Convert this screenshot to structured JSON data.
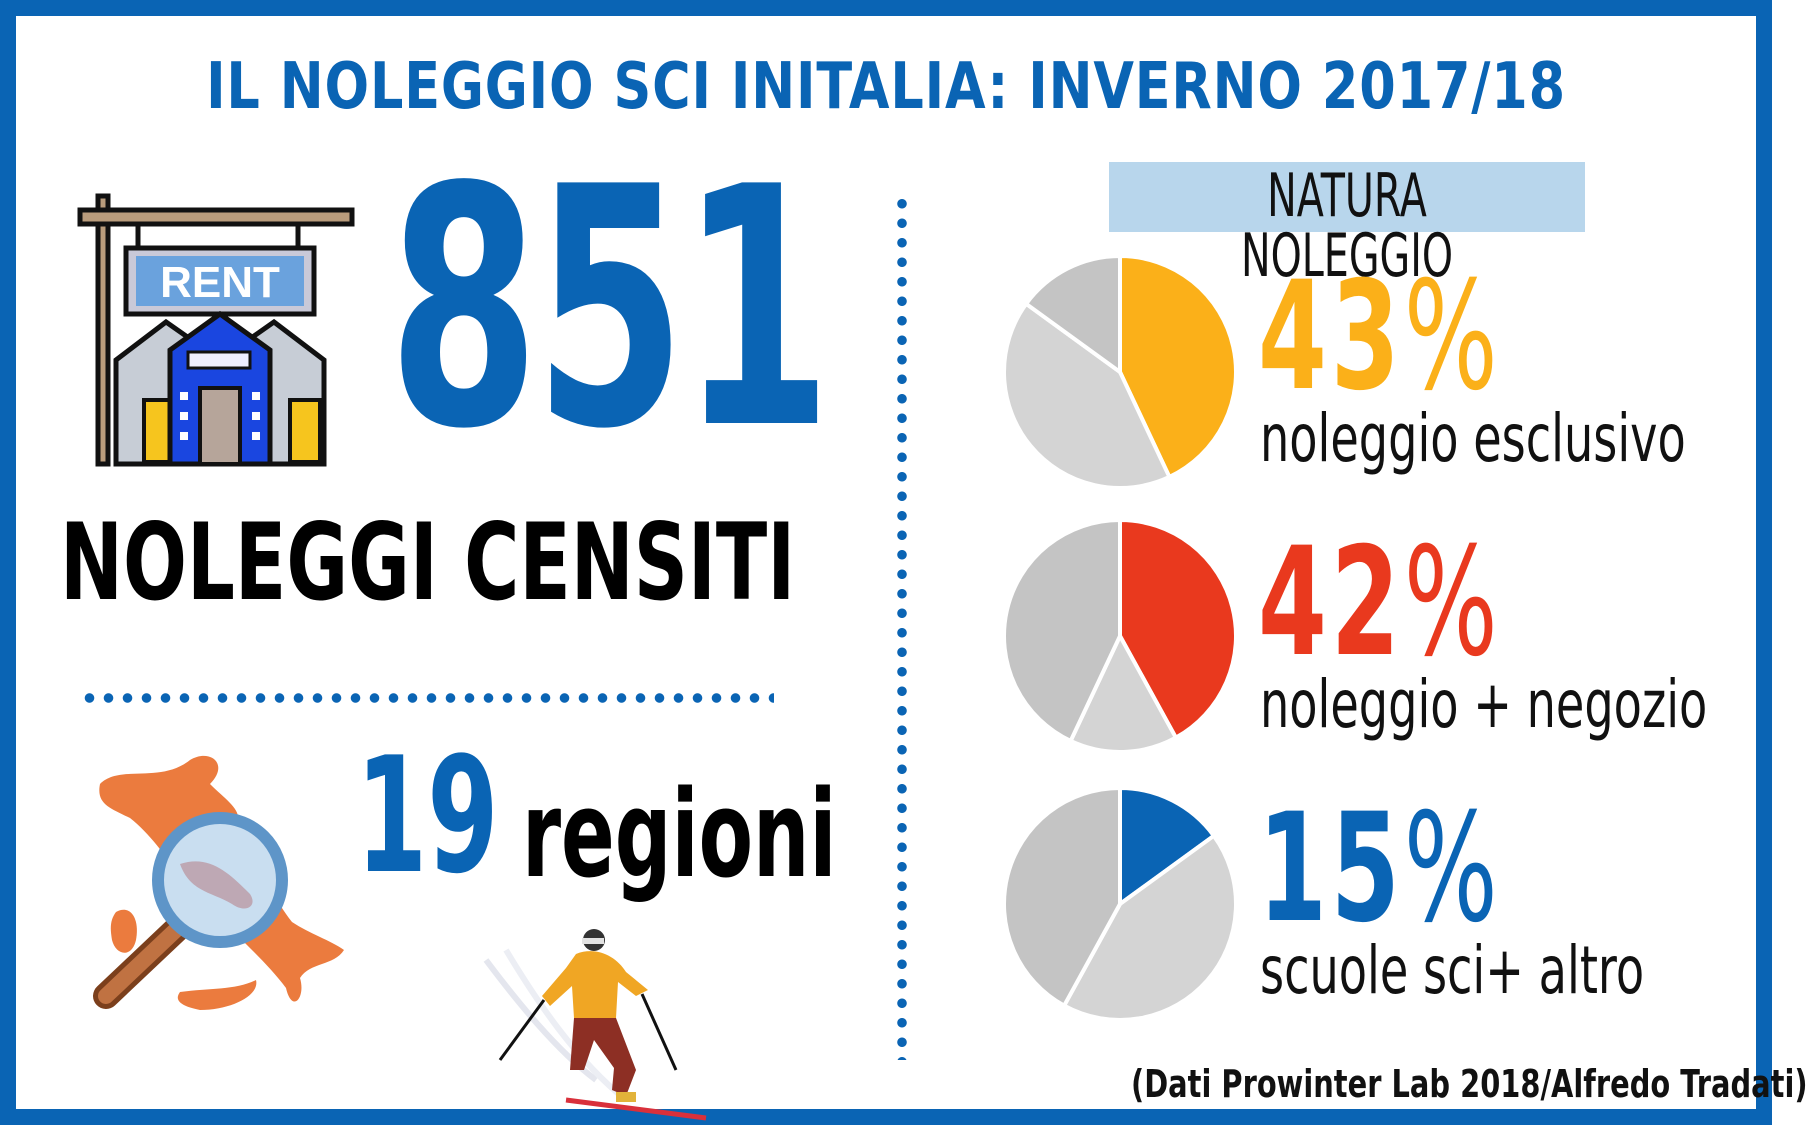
{
  "title": "IL NOLEGGIO SCI INITALIA: INVERNO 2017/18",
  "rent_sign": "RENT",
  "total": {
    "number": "851",
    "label": "NOLEGGI CENSITI"
  },
  "regions": {
    "number": "19",
    "word": "regioni"
  },
  "natura": {
    "header": "NATURA NOLEGGIO",
    "items": [
      {
        "value": "43",
        "sign": "%",
        "label": "noleggio esclusivo",
        "color": "#fbb019"
      },
      {
        "value": "42",
        "sign": "%",
        "label": "noleggio + negozio",
        "color": "#e9391e"
      },
      {
        "value": "15",
        "sign": "%",
        "label": "scuole sci+ altro",
        "color": "#0a64b4"
      }
    ]
  },
  "chart_data": [
    {
      "type": "pie",
      "categories": [
        "noleggio esclusivo",
        "noleggio + negozio",
        "scuole sci+ altro"
      ],
      "values": [
        43,
        42,
        15
      ],
      "highlight": "noleggio esclusivo"
    },
    {
      "type": "pie",
      "categories": [
        "noleggio esclusivo",
        "noleggio + negozio",
        "scuole sci+ altro"
      ],
      "values": [
        43,
        42,
        15
      ],
      "highlight": "noleggio + negozio"
    },
    {
      "type": "pie",
      "categories": [
        "noleggio esclusivo",
        "noleggio + negozio",
        "scuole sci+ altro"
      ],
      "values": [
        43,
        42,
        15
      ],
      "highlight": "scuole sci+ altro"
    }
  ],
  "source": "(Dati Prowinter Lab 2018/Alfredo Tradati)",
  "icons": [
    "rent-shop-icon",
    "italy-map-magnifier-icon",
    "skier-icon"
  ]
}
